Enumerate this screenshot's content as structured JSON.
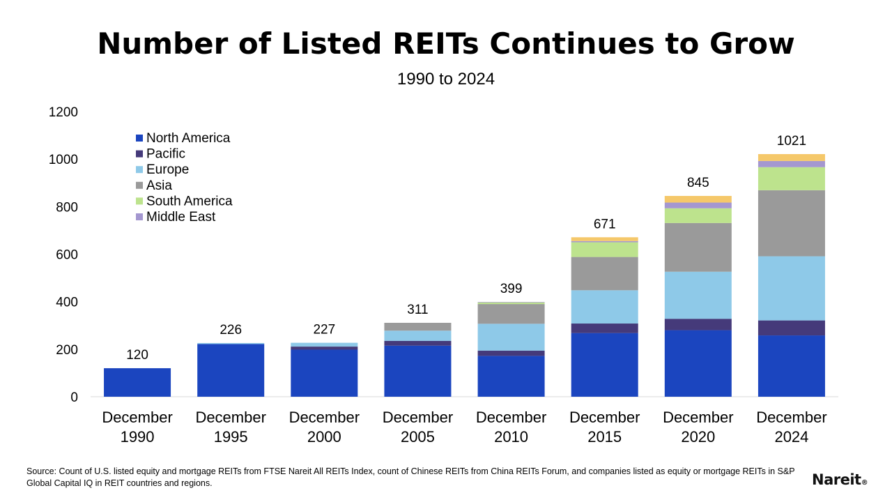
{
  "title": "Number of Listed REITs Continues to Grow",
  "subtitle": "1990 to 2024",
  "source": "Source: Count of U.S. listed equity and mortgage REITs from FTSE Nareit All REITs Index, count of Chinese REITs from China REITs Forum, and companies listed as equity or mortgage REITs in S&P Global Capital IQ in REIT countries and regions.",
  "logo": {
    "text": "Nareit",
    "mark": "®"
  },
  "chart_data": {
    "type": "bar",
    "stacked": true,
    "categories": [
      [
        "December",
        "1990"
      ],
      [
        "December",
        "1995"
      ],
      [
        "December",
        "2000"
      ],
      [
        "December",
        "2005"
      ],
      [
        "December",
        "2010"
      ],
      [
        "December",
        "2015"
      ],
      [
        "December",
        "2020"
      ],
      [
        "December",
        "2024"
      ]
    ],
    "ylim": [
      0,
      1200
    ],
    "yticks": [
      0,
      200,
      400,
      600,
      800,
      1000,
      1200
    ],
    "grid": false,
    "legend_position": "top-left",
    "totals": [
      120,
      226,
      227,
      311,
      399,
      671,
      845,
      1021
    ],
    "series": [
      {
        "name": "North America",
        "color": "#1b45bf",
        "values": [
          120,
          222,
          198,
          215,
          172,
          268,
          280,
          258
        ],
        "in_legend": true
      },
      {
        "name": "Pacific",
        "color": "#453a7a",
        "values": [
          0,
          0,
          13,
          20,
          22,
          40,
          48,
          63
        ],
        "in_legend": true
      },
      {
        "name": "Europe",
        "color": "#8ec9e8",
        "values": [
          0,
          4,
          16,
          43,
          113,
          140,
          198,
          270
        ],
        "in_legend": true
      },
      {
        "name": "Asia",
        "color": "#9a9a9a",
        "values": [
          0,
          0,
          0,
          33,
          83,
          140,
          205,
          278
        ],
        "in_legend": true
      },
      {
        "name": "South America",
        "color": "#bde38d",
        "values": [
          0,
          0,
          0,
          0,
          7,
          62,
          62,
          97
        ],
        "in_legend": true
      },
      {
        "name": "Middle East",
        "color": "#a497d0",
        "values": [
          0,
          0,
          0,
          0,
          2,
          5,
          24,
          26
        ],
        "in_legend": true
      },
      {
        "name": "",
        "color": "#f5c86a",
        "values": [
          0,
          0,
          0,
          0,
          0,
          16,
          28,
          29
        ],
        "in_legend": false
      }
    ]
  }
}
